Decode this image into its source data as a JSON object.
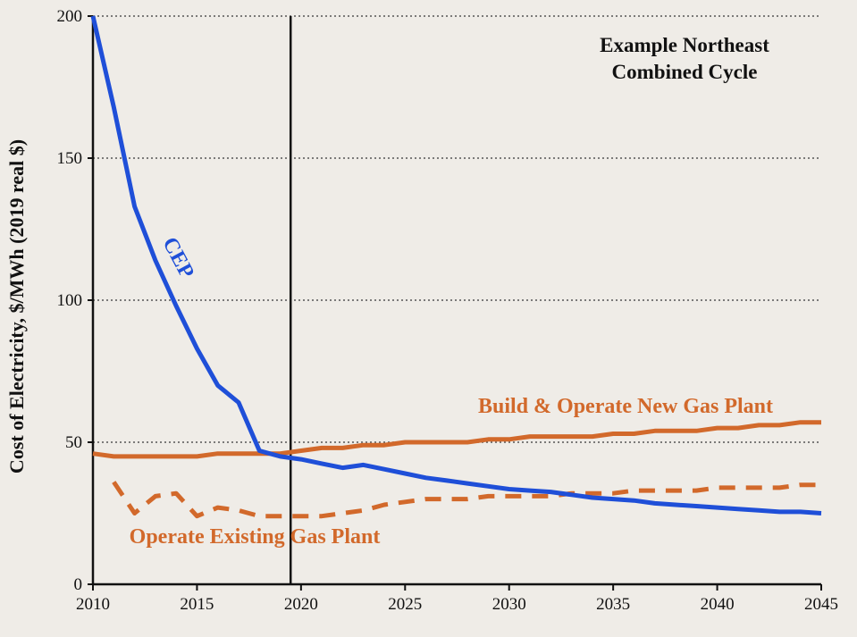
{
  "chart_data": {
    "type": "line",
    "title_lines": [
      "Example Northeast",
      "Combined Cycle"
    ],
    "xlabel": "",
    "ylabel": "Cost of Electricity, $/MWh (2019 real $)",
    "xlim": [
      2010,
      2045
    ],
    "ylim": [
      0,
      200
    ],
    "x_ticks": [
      2010,
      2015,
      2020,
      2025,
      2030,
      2035,
      2040,
      2045
    ],
    "y_ticks": [
      0,
      50,
      100,
      150,
      200
    ],
    "grid": "horizontal dotted",
    "reference_line_x": 2019.5,
    "colors": {
      "background": "#efece7",
      "cep": "#1f4fd8",
      "gas": "#d2692b",
      "axis": "#111111",
      "grid": "#555555",
      "title": "#111111"
    },
    "series": [
      {
        "name": "CEP",
        "style": "solid",
        "color": "#1f4fd8",
        "x": [
          2010,
          2011,
          2012,
          2013,
          2014,
          2015,
          2016,
          2017,
          2018,
          2019,
          2020,
          2021,
          2022,
          2023,
          2024,
          2025,
          2026,
          2027,
          2028,
          2029,
          2030,
          2031,
          2032,
          2033,
          2034,
          2035,
          2036,
          2037,
          2038,
          2039,
          2040,
          2041,
          2042,
          2043,
          2044,
          2045
        ],
        "values": [
          200,
          168,
          133,
          114,
          98,
          83,
          70,
          64,
          47,
          45,
          44,
          42.5,
          41,
          42,
          40.5,
          39,
          37.5,
          36.5,
          35.5,
          34.5,
          33.5,
          33,
          32.5,
          31.5,
          30.5,
          30,
          29.5,
          28.5,
          28,
          27.5,
          27,
          26.5,
          26,
          25.5,
          25.5,
          25
        ]
      },
      {
        "name": "Build & Operate New Gas Plant",
        "style": "solid",
        "color": "#d2692b",
        "x": [
          2010,
          2011,
          2012,
          2013,
          2014,
          2015,
          2016,
          2017,
          2018,
          2019,
          2020,
          2021,
          2022,
          2023,
          2024,
          2025,
          2026,
          2027,
          2028,
          2029,
          2030,
          2031,
          2032,
          2033,
          2034,
          2035,
          2036,
          2037,
          2038,
          2039,
          2040,
          2041,
          2042,
          2043,
          2044,
          2045
        ],
        "values": [
          46,
          45,
          45,
          45,
          45,
          45,
          46,
          46,
          46,
          46,
          47,
          48,
          48,
          49,
          49,
          50,
          50,
          50,
          50,
          51,
          51,
          52,
          52,
          52,
          52,
          53,
          53,
          54,
          54,
          54,
          55,
          55,
          56,
          56,
          57,
          57
        ]
      },
      {
        "name": "Operate Existing Gas Plant",
        "style": "dashed",
        "color": "#d2692b",
        "x": [
          2011,
          2012,
          2013,
          2014,
          2015,
          2016,
          2017,
          2018,
          2019,
          2020,
          2021,
          2022,
          2023,
          2024,
          2025,
          2026,
          2027,
          2028,
          2029,
          2030,
          2031,
          2032,
          2033,
          2034,
          2035,
          2036,
          2037,
          2038,
          2039,
          2040,
          2041,
          2042,
          2043,
          2044,
          2045
        ],
        "values": [
          36,
          25,
          31,
          32,
          24,
          27,
          26,
          24,
          24,
          24,
          24,
          25,
          26,
          28,
          29,
          30,
          30,
          30,
          31,
          31,
          31,
          31,
          32,
          32,
          32,
          33,
          33,
          33,
          33,
          34,
          34,
          34,
          34,
          35,
          35
        ]
      }
    ]
  }
}
